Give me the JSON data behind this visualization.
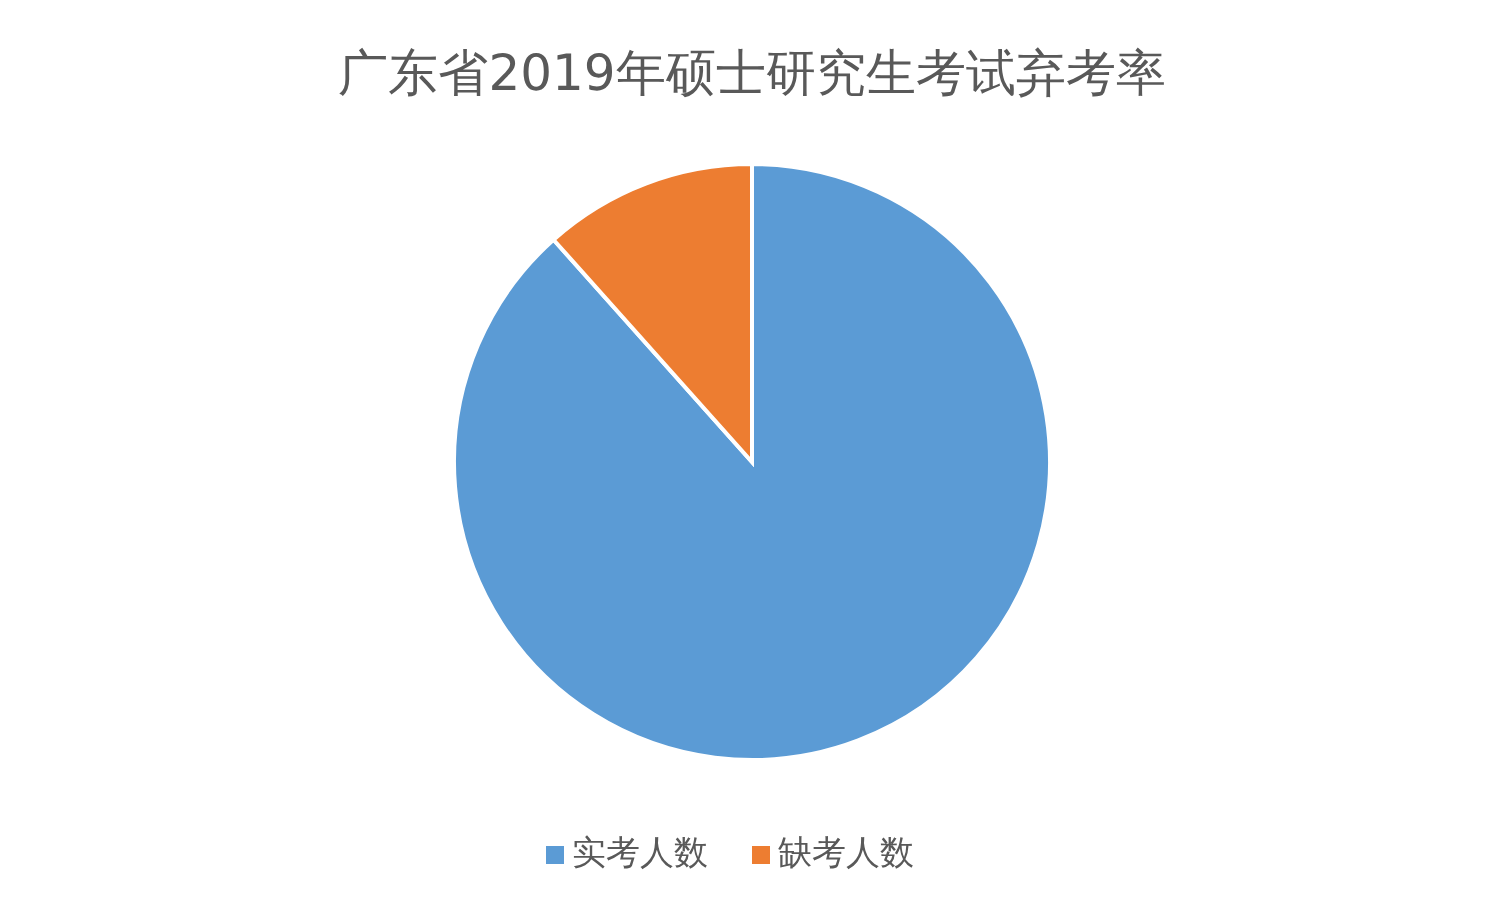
{
  "chart_data": {
    "type": "pie",
    "title": "广东省2019年硕士研究生考试弃考率",
    "categories": [
      "实考人数",
      "缺考人数"
    ],
    "values": [
      88.4,
      11.6
    ],
    "colors": [
      "#5b9bd5",
      "#ed7d31"
    ],
    "legend": "bottom"
  }
}
